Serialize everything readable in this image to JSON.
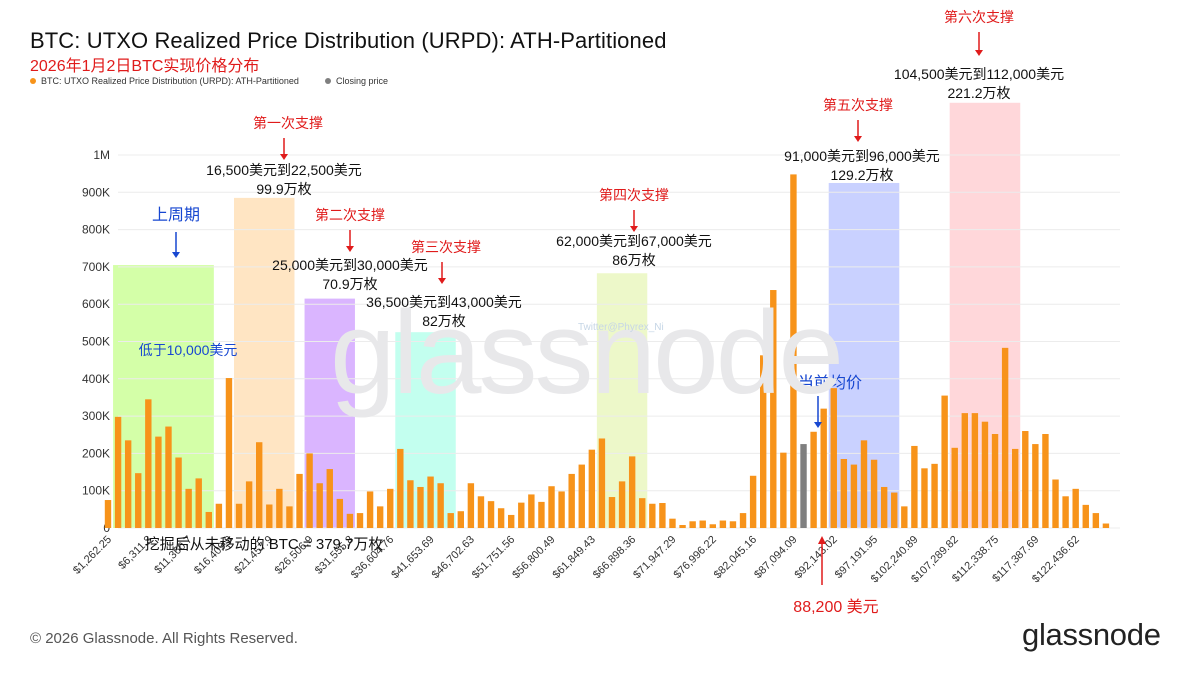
{
  "header": {
    "title": "BTC: UTXO Realized Price Distribution (URPD): ATH-Partitioned",
    "subtitle": "2026年1月2日BTC实现价格分布"
  },
  "legend": [
    {
      "label": "BTC: UTXO Realized Price Distribution (URPD): ATH-Partitioned",
      "color": "#f7931a"
    },
    {
      "label": "Closing price",
      "color": "#7f7f7f"
    }
  ],
  "footer": {
    "copyright": "© 2026 Glassnode. All Rights Reserved.",
    "logo": "glassnode"
  },
  "watermark": "glassnode",
  "watermark_handle": "Twitter@Phyrex_Ni",
  "colors": {
    "bar": "#f7931a",
    "closing_bar": "#7f7f7f",
    "annotation_red": "#e01b1b",
    "annotation_blue": "#1747d1",
    "zone_green": "#ccff99",
    "zone_orange": "#ffe0b8",
    "zone_purple": "#d4a8ff",
    "zone_cyan": "#b8ffec",
    "zone_lime": "#eaf7c0",
    "zone_blue": "#bfc9ff",
    "zone_pink": "#ffd0d4"
  },
  "chart_data": {
    "type": "bar",
    "ylim": [
      0,
      1000000
    ],
    "y_ticks": [
      {
        "value": 0,
        "label": "0"
      },
      {
        "value": 100000,
        "label": "100K"
      },
      {
        "value": 200000,
        "label": "200K"
      },
      {
        "value": 300000,
        "label": "300K"
      },
      {
        "value": 400000,
        "label": "400K"
      },
      {
        "value": 500000,
        "label": "500K"
      },
      {
        "value": 600000,
        "label": "600K"
      },
      {
        "value": 700000,
        "label": "700K"
      },
      {
        "value": 800000,
        "label": "800K"
      },
      {
        "value": 900000,
        "label": "900K"
      },
      {
        "value": 1000000,
        "label": "1M"
      }
    ],
    "x_tick_labels": [
      {
        "index": 0,
        "label": "$1,262.25"
      },
      {
        "index": 4,
        "label": "$6,311.3"
      },
      {
        "index": 8,
        "label": "$11,360.7"
      },
      {
        "index": 12,
        "label": "$16,409.9"
      },
      {
        "index": 16,
        "label": "$21,457.9"
      },
      {
        "index": 20,
        "label": "$26,506.9"
      },
      {
        "index": 24,
        "label": "$31,555.8"
      },
      {
        "index": 28,
        "label": "$36,604.76"
      },
      {
        "index": 32,
        "label": "$41,653.69"
      },
      {
        "index": 36,
        "label": "$46,702.63"
      },
      {
        "index": 40,
        "label": "$51,751.56"
      },
      {
        "index": 44,
        "label": "$56,800.49"
      },
      {
        "index": 48,
        "label": "$61,849.43"
      },
      {
        "index": 52,
        "label": "$66,898.36"
      },
      {
        "index": 56,
        "label": "$71,947.29"
      },
      {
        "index": 60,
        "label": "$76,996.22"
      },
      {
        "index": 64,
        "label": "$82,045.16"
      },
      {
        "index": 68,
        "label": "$87,094.09"
      },
      {
        "index": 72,
        "label": "$92,143.02"
      },
      {
        "index": 76,
        "label": "$97,191.95"
      },
      {
        "index": 80,
        "label": "$102,240.89"
      },
      {
        "index": 84,
        "label": "$107,289.82"
      },
      {
        "index": 88,
        "label": "$112,338.75"
      },
      {
        "index": 92,
        "label": "$117,387.69"
      },
      {
        "index": 96,
        "label": "$122,436.62"
      }
    ],
    "closing_price_index": 69,
    "values": [
      75000,
      298000,
      235000,
      147000,
      345000,
      245000,
      272000,
      189000,
      105000,
      133000,
      43000,
      65000,
      402000,
      65000,
      125000,
      230000,
      63000,
      105000,
      58000,
      145000,
      200000,
      120000,
      158000,
      78000,
      38000,
      40000,
      98000,
      58000,
      105000,
      212000,
      128000,
      110000,
      138000,
      120000,
      40000,
      45000,
      120000,
      85000,
      72000,
      53000,
      35000,
      68000,
      90000,
      70000,
      112000,
      98000,
      145000,
      170000,
      210000,
      240000,
      83000,
      125000,
      192000,
      80000,
      65000,
      67000,
      25000,
      8000,
      18000,
      20000,
      10000,
      20000,
      18000,
      40000,
      140000,
      463000,
      638000,
      202000,
      948000,
      225000,
      258000,
      320000,
      375000,
      185000,
      170000,
      235000,
      183000,
      110000,
      95000,
      58000,
      220000,
      160000,
      172000,
      355000,
      215000,
      308000,
      308000,
      285000,
      252000,
      483000,
      212000,
      260000,
      225000,
      252000,
      130000,
      85000,
      105000,
      62000,
      40000,
      12000
    ]
  },
  "zones": [
    {
      "start": 1,
      "end": 10,
      "top": 705000,
      "color": "zone_green"
    },
    {
      "start": 13,
      "end": 18,
      "top": 885000,
      "color": "zone_orange"
    },
    {
      "start": 20,
      "end": 24,
      "top": 615000,
      "color": "zone_purple"
    },
    {
      "start": 29,
      "end": 34,
      "top": 525000,
      "color": "zone_cyan"
    },
    {
      "start": 49,
      "end": 53,
      "top": 683000,
      "color": "zone_lime"
    },
    {
      "start": 72,
      "end": 78,
      "top": 925000,
      "color": "zone_blue"
    },
    {
      "start": 84,
      "end": 90,
      "top": 1140000,
      "color": "zone_pink"
    }
  ],
  "annotations": {
    "last_cycle": {
      "title": "上周期",
      "range": "低于10,000美元"
    },
    "support_1": {
      "title": "第一次支撑",
      "range": "16,500美元到22,500美元",
      "amount": "99.9万枚"
    },
    "support_2": {
      "title": "第二次支撑",
      "range": "25,000美元到30,000美元",
      "amount": "70.9万枚"
    },
    "support_3": {
      "title": "第三次支撑",
      "range": "36,500美元到43,000美元",
      "amount": "82万枚"
    },
    "support_4": {
      "title": "第四次支撑",
      "range": "62,000美元到67,000美元",
      "amount": "86万枚"
    },
    "support_5": {
      "title": "第五次支撑",
      "range": "91,000美元到96,000美元",
      "amount": "129.2万枚"
    },
    "support_6": {
      "title": "第六次支撑",
      "range": "104,500美元到112,000美元",
      "amount": "221.2万枚"
    },
    "current_avg": {
      "title": "当前均价",
      "price": "88,200 美元"
    },
    "never_moved": "挖掘后从未移动的 BTC = 379.7万枚"
  }
}
